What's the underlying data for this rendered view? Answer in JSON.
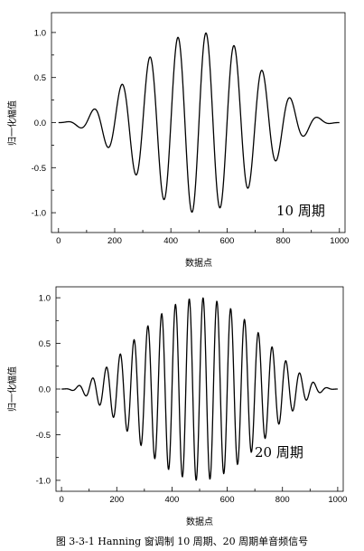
{
  "caption": "图 3-3-1    Hanning 窗调制 10 周期、20 周期单音频信号",
  "chart_data": [
    {
      "type": "line",
      "title": "",
      "xlabel": "数据点",
      "ylabel": "归一化幅值",
      "annotation": "10 周期",
      "xlim": [
        -25,
        1020
      ],
      "ylim": [
        -1.22,
        1.22
      ],
      "x_ticks": [
        0,
        200,
        400,
        600,
        800,
        1000
      ],
      "y_ticks": [
        1.0,
        0.5,
        0.0,
        -0.5,
        -1.0
      ],
      "x_tick_labels": [
        "0",
        "200",
        "400",
        "600",
        "800",
        "1000"
      ],
      "y_tick_labels": [
        "1.0",
        "0.5",
        "0.0",
        "-0.5",
        "-1.0"
      ],
      "signal": {
        "points": 1000,
        "cycles": 10,
        "window": "Hanning"
      },
      "series": [
        {
          "x": [
            0,
            30,
            75,
            125,
            175,
            225,
            275,
            325,
            375,
            425,
            475,
            525,
            575,
            625,
            675,
            725,
            775,
            825,
            875,
            925,
            970,
            1000
          ],
          "y": [
            0,
            0,
            -0.06,
            0.15,
            -0.27,
            0.43,
            -0.59,
            0.73,
            -0.86,
            0.95,
            -1.0,
            1.0,
            -0.95,
            0.86,
            -0.73,
            0.59,
            -0.43,
            0.27,
            -0.15,
            0.06,
            0,
            0
          ]
        }
      ]
    },
    {
      "type": "line",
      "title": "",
      "xlabel": "数据点",
      "ylabel": "归一化幅值",
      "annotation": "20 周期",
      "xlim": [
        -20,
        1020
      ],
      "ylim": [
        -1.12,
        1.12
      ],
      "x_ticks": [
        0,
        200,
        400,
        600,
        800,
        1000
      ],
      "y_ticks": [
        1.0,
        0.5,
        0.0,
        -0.5,
        -1.0
      ],
      "x_tick_labels": [
        "0",
        "200",
        "400",
        "600",
        "800",
        "1000"
      ],
      "y_tick_labels": [
        "1.0",
        "0.5",
        "0.0",
        "-0.5",
        "-1.0"
      ],
      "signal": {
        "points": 1000,
        "cycles": 20,
        "window": "Hanning"
      },
      "series": [
        {
          "x": [
            0,
            25,
            75,
            125,
            175,
            225,
            275,
            325,
            375,
            425,
            475,
            525,
            575,
            625,
            675,
            725,
            775,
            825,
            875,
            925,
            975,
            1000
          ],
          "y": [
            0,
            0,
            -0.06,
            0.13,
            -0.25,
            0.39,
            -0.55,
            0.71,
            -0.84,
            0.95,
            -1.0,
            1.0,
            -0.95,
            0.84,
            -0.71,
            0.55,
            -0.39,
            0.25,
            -0.13,
            0.06,
            0,
            0
          ]
        }
      ]
    }
  ]
}
